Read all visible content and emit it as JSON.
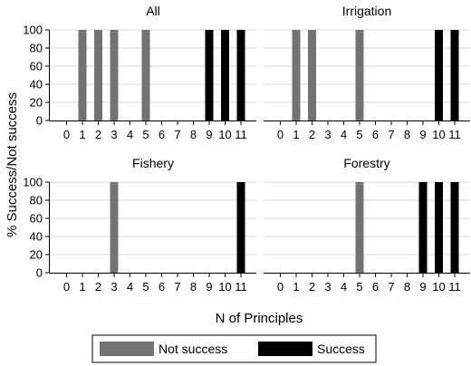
{
  "chart_data": {
    "type": "bar",
    "ylabel": "% Success/Not success",
    "xlabel": "N of Principles",
    "x_ticks": [
      "0",
      "1",
      "2",
      "3",
      "4",
      "5",
      "6",
      "7",
      "8",
      "9",
      "10",
      "11"
    ],
    "y_ticks": [
      0,
      20,
      40,
      60,
      80,
      100
    ],
    "ylim": [
      0,
      100
    ],
    "grid": true,
    "legend": {
      "placement": "bottom",
      "entries": [
        {
          "name": "Not success",
          "color": "#737373"
        },
        {
          "name": "Success",
          "color": "#000000"
        }
      ]
    },
    "panels": [
      {
        "title": "All",
        "bars": [
          {
            "x": 1,
            "value": 100,
            "series": "Not success"
          },
          {
            "x": 2,
            "value": 100,
            "series": "Not success"
          },
          {
            "x": 3,
            "value": 100,
            "series": "Not success"
          },
          {
            "x": 5,
            "value": 100,
            "series": "Not success"
          },
          {
            "x": 9,
            "value": 100,
            "series": "Success"
          },
          {
            "x": 10,
            "value": 100,
            "series": "Success"
          },
          {
            "x": 11,
            "value": 100,
            "series": "Success"
          }
        ]
      },
      {
        "title": "Irrigation",
        "bars": [
          {
            "x": 1,
            "value": 100,
            "series": "Not success"
          },
          {
            "x": 2,
            "value": 100,
            "series": "Not success"
          },
          {
            "x": 5,
            "value": 100,
            "series": "Not success"
          },
          {
            "x": 10,
            "value": 100,
            "series": "Success"
          },
          {
            "x": 11,
            "value": 100,
            "series": "Success"
          }
        ]
      },
      {
        "title": "Fishery",
        "bars": [
          {
            "x": 3,
            "value": 100,
            "series": "Not success"
          },
          {
            "x": 11,
            "value": 100,
            "series": "Success"
          }
        ]
      },
      {
        "title": "Forestry",
        "bars": [
          {
            "x": 5,
            "value": 100,
            "series": "Not success"
          },
          {
            "x": 9,
            "value": 100,
            "series": "Success"
          },
          {
            "x": 10,
            "value": 100,
            "series": "Success"
          },
          {
            "x": 11,
            "value": 100,
            "series": "Success"
          }
        ]
      }
    ]
  }
}
